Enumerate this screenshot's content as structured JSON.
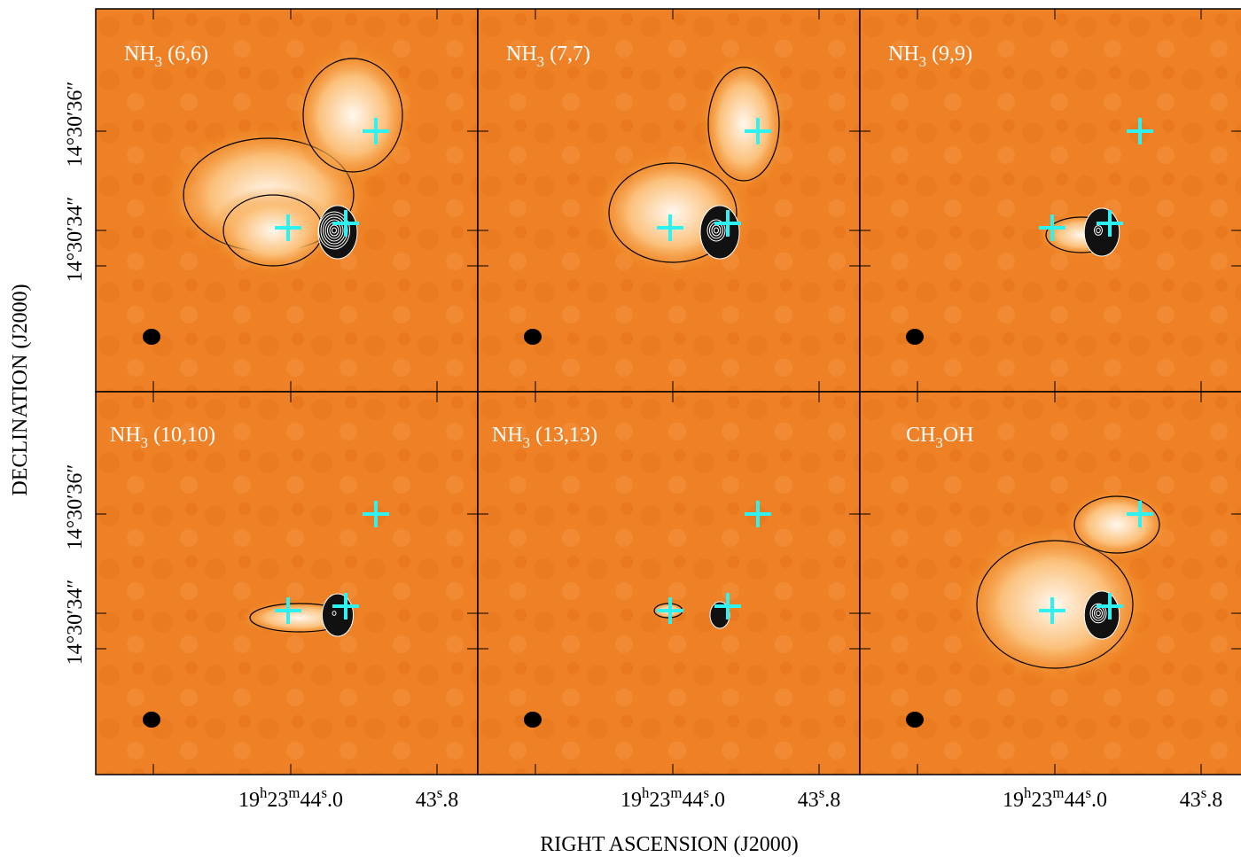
{
  "figure": {
    "y_axis_title": "DECLINATION (J2000)",
    "x_axis_title": "RIGHT ASCENSION (J2000)",
    "y_tick_labels": [
      "14°30′36″",
      "14°30′34″"
    ],
    "x_tick_labels": [
      [
        {
          "text": "19"
        },
        {
          "text": "h",
          "sup": true
        },
        {
          "text": "23"
        },
        {
          "text": "m",
          "sup": true
        },
        {
          "text": "44"
        },
        {
          "text": "s",
          "sup": true
        },
        {
          "text": ".0"
        }
      ],
      [
        {
          "text": "43"
        },
        {
          "text": "s",
          "sup": true
        },
        {
          "text": ".8"
        }
      ]
    ],
    "panels": [
      {
        "label": [
          {
            "text": "NH"
          },
          {
            "text": "3",
            "sub": true
          },
          {
            "text": " (6,6)"
          }
        ]
      },
      {
        "label": [
          {
            "text": "NH"
          },
          {
            "text": "3",
            "sub": true
          },
          {
            "text": " (7,7)"
          }
        ]
      },
      {
        "label": [
          {
            "text": "NH"
          },
          {
            "text": "3",
            "sub": true
          },
          {
            "text": " (9,9)"
          }
        ]
      },
      {
        "label": [
          {
            "text": "NH"
          },
          {
            "text": "3",
            "sub": true
          },
          {
            "text": " (10,10)"
          }
        ]
      },
      {
        "label": [
          {
            "text": "NH"
          },
          {
            "text": "3",
            "sub": true
          },
          {
            "text": " (13,13)"
          }
        ]
      },
      {
        "label": [
          {
            "text": "CH"
          },
          {
            "text": "3",
            "sub": true
          },
          {
            "text": "OH"
          }
        ]
      }
    ]
  }
}
